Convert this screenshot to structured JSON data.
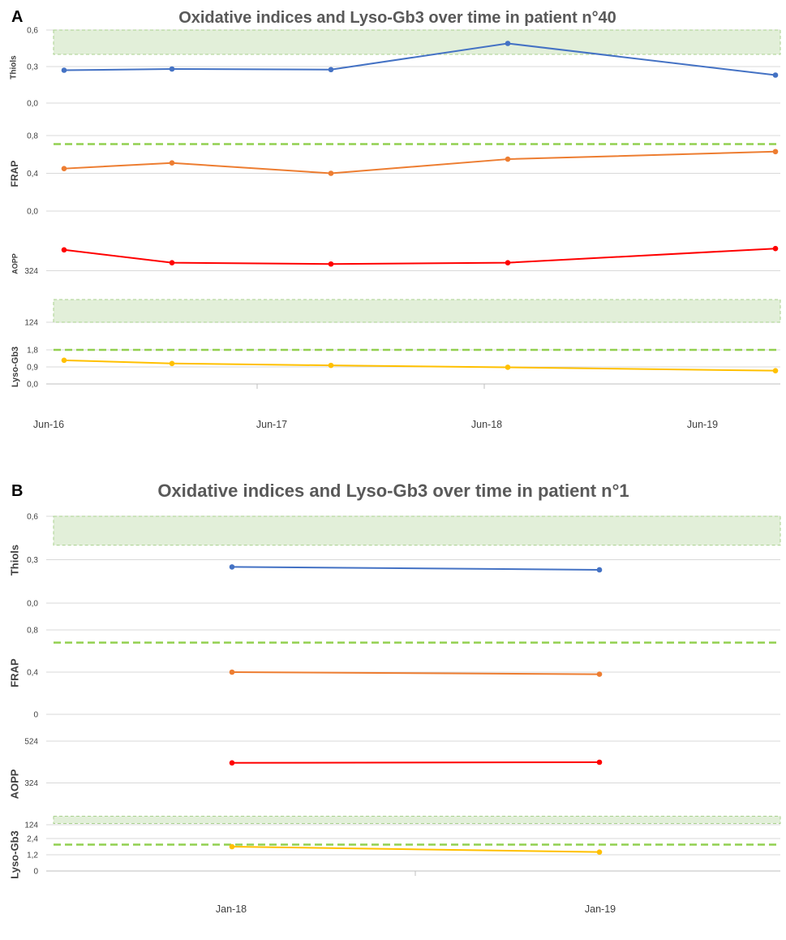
{
  "panels": [
    {
      "letter": "A",
      "title": "Oxidative indices and Lyso-Gb3 over time in patient n°40",
      "x_ticks": [
        "Jun-16",
        "Jun-17",
        "Jun-18",
        "Jun-19"
      ]
    },
    {
      "letter": "B",
      "title": "Oxidative indices and Lyso-Gb3 over time in patient n°1",
      "x_ticks": [
        "Jan-18",
        "Jan-19"
      ]
    }
  ],
  "chart_data": [
    {
      "type": "line",
      "title": "Oxidative indices and Lyso-Gb3 over time in patient n°40",
      "xlabel": "",
      "x_ticks": [
        "Jun-16",
        "Jun-17",
        "Jun-18",
        "Jun-19"
      ],
      "x_range": [
        "2016-06",
        "2019-10"
      ],
      "grid": true,
      "legend": "none",
      "subplots": [
        {
          "ylabel": "Thiols",
          "ylim": [
            0,
            0.6
          ],
          "y_ticks": [
            "0,0",
            "0,3",
            "0,6"
          ],
          "color": "#4472C4",
          "x": [
            "2016-06",
            "2016-12",
            "2017-10",
            "2018-07",
            "2019-10"
          ],
          "values": [
            0.27,
            0.28,
            0.275,
            0.49,
            0.23
          ],
          "reference_band": [
            0.4,
            0.6
          ]
        },
        {
          "ylabel": "FRAP",
          "ylim": [
            0,
            0.8
          ],
          "y_ticks": [
            "0,0",
            "0,4",
            "0,8"
          ],
          "color": "#ED7D31",
          "x": [
            "2016-06",
            "2016-12",
            "2017-10",
            "2018-07",
            "2019-10"
          ],
          "values": [
            0.45,
            0.51,
            0.4,
            0.55,
            0.63
          ],
          "reference_line": 0.71
        },
        {
          "ylabel": "AOPP",
          "ylim": [
            124,
            524
          ],
          "y_ticks": [
            "124",
            "324"
          ],
          "color": "#FF0000",
          "x": [
            "2016-06",
            "2016-12",
            "2017-10",
            "2018-07",
            "2019-10"
          ],
          "values": [
            405,
            355,
            350,
            355,
            410
          ],
          "reference_band": [
            124,
            212
          ]
        },
        {
          "ylabel": "Lyso-Gb3",
          "ylim": [
            0,
            1.8
          ],
          "y_ticks": [
            "0,0",
            "0,9",
            "1,8"
          ],
          "color": "#FFC000",
          "x": [
            "2016-06",
            "2016-12",
            "2017-10",
            "2018-07",
            "2019-10"
          ],
          "values": [
            1.25,
            1.08,
            0.98,
            0.88,
            0.7
          ],
          "reference_line": 1.8
        }
      ]
    },
    {
      "type": "line",
      "title": "Oxidative indices and Lyso-Gb3 over time in patient n°1",
      "xlabel": "",
      "x_ticks": [
        "Jan-18",
        "Jan-19"
      ],
      "x_range": [
        "2017-06",
        "2019-06"
      ],
      "grid": true,
      "legend": "none",
      "subplots": [
        {
          "ylabel": "Thiols",
          "ylim": [
            0,
            0.6
          ],
          "y_ticks": [
            "0,0",
            "0,3",
            "0,6"
          ],
          "color": "#4472C4",
          "x": [
            "2018-01",
            "2019-01"
          ],
          "values": [
            0.25,
            0.23
          ],
          "reference_band": [
            0.4,
            0.6
          ]
        },
        {
          "ylabel": "FRAP",
          "ylim": [
            0,
            0.8
          ],
          "y_ticks": [
            "0",
            "0,4",
            "0,8"
          ],
          "color": "#ED7D31",
          "x": [
            "2018-01",
            "2019-01"
          ],
          "values": [
            0.4,
            0.38
          ],
          "reference_line": 0.68
        },
        {
          "ylabel": "AOPP",
          "ylim": [
            124,
            524
          ],
          "y_ticks": [
            "124",
            "324",
            "524"
          ],
          "color": "#FF0000",
          "x": [
            "2018-01",
            "2019-01"
          ],
          "values": [
            420,
            423
          ],
          "reference_band": [
            130,
            165
          ]
        },
        {
          "ylabel": "Lyso-Gb3",
          "ylim": [
            0,
            2.4
          ],
          "y_ticks": [
            "0",
            "1,2",
            "2,4"
          ],
          "color": "#FFC000",
          "x": [
            "2018-01",
            "2019-01"
          ],
          "values": [
            1.8,
            1.4
          ],
          "reference_line": 1.95
        }
      ]
    }
  ]
}
